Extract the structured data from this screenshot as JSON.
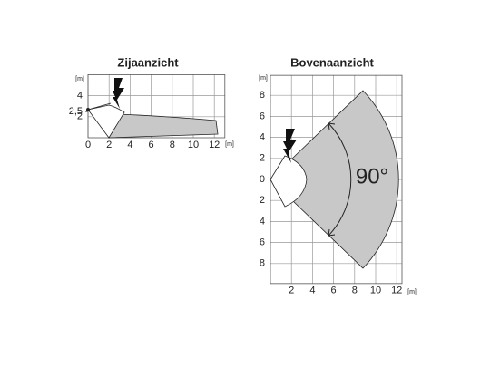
{
  "side_view": {
    "title": "Zijaanzicht",
    "unit_y": "[m]",
    "unit_x": "[m]",
    "yticks": [
      4,
      {
        "value": 2.5,
        "label": "2,5"
      },
      2
    ],
    "xticks": [
      0,
      2,
      4,
      6,
      8,
      10,
      12
    ]
  },
  "top_view": {
    "title": "Bovenaanzicht",
    "unit_y": "[m]",
    "unit_x": "[m]",
    "angle": "90°",
    "yticks": [
      8,
      6,
      4,
      2,
      0,
      {
        "value": -2,
        "label": "2"
      },
      {
        "value": -4,
        "label": "4"
      },
      {
        "value": -6,
        "label": "6"
      },
      {
        "value": -8,
        "label": "8"
      }
    ],
    "xticks": [
      2,
      4,
      6,
      8,
      10,
      12
    ]
  }
}
